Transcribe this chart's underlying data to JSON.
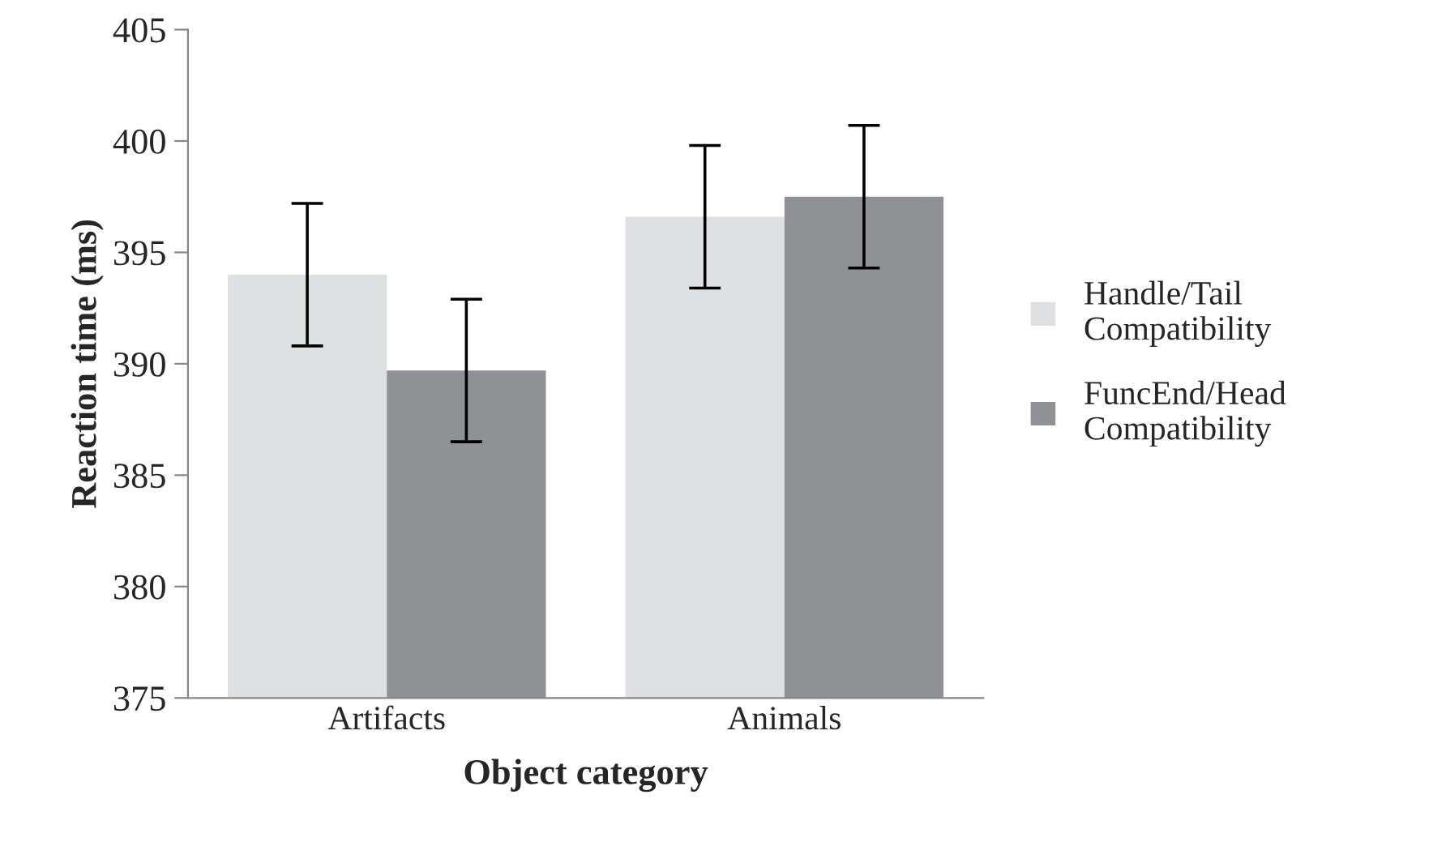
{
  "chart_data": {
    "type": "bar",
    "xlabel": "Object category",
    "ylabel": "Reaction time (ms)",
    "categories": [
      "Artifacts",
      "Animals"
    ],
    "series": [
      {
        "name": "Handle/Tail\nCompatibility",
        "color": "#dfe0e2",
        "values": [
          394.0,
          396.6
        ],
        "errors": [
          3.2,
          3.2
        ]
      },
      {
        "name": "FuncEnd/Head\nCompatibility",
        "color": "#909195",
        "values": [
          389.7,
          397.5
        ],
        "errors": [
          3.2,
          3.2
        ]
      }
    ],
    "ylim": [
      375,
      405
    ],
    "yticks": [
      375,
      380,
      385,
      390,
      395,
      400,
      405
    ],
    "grid": false,
    "legend": "right"
  }
}
